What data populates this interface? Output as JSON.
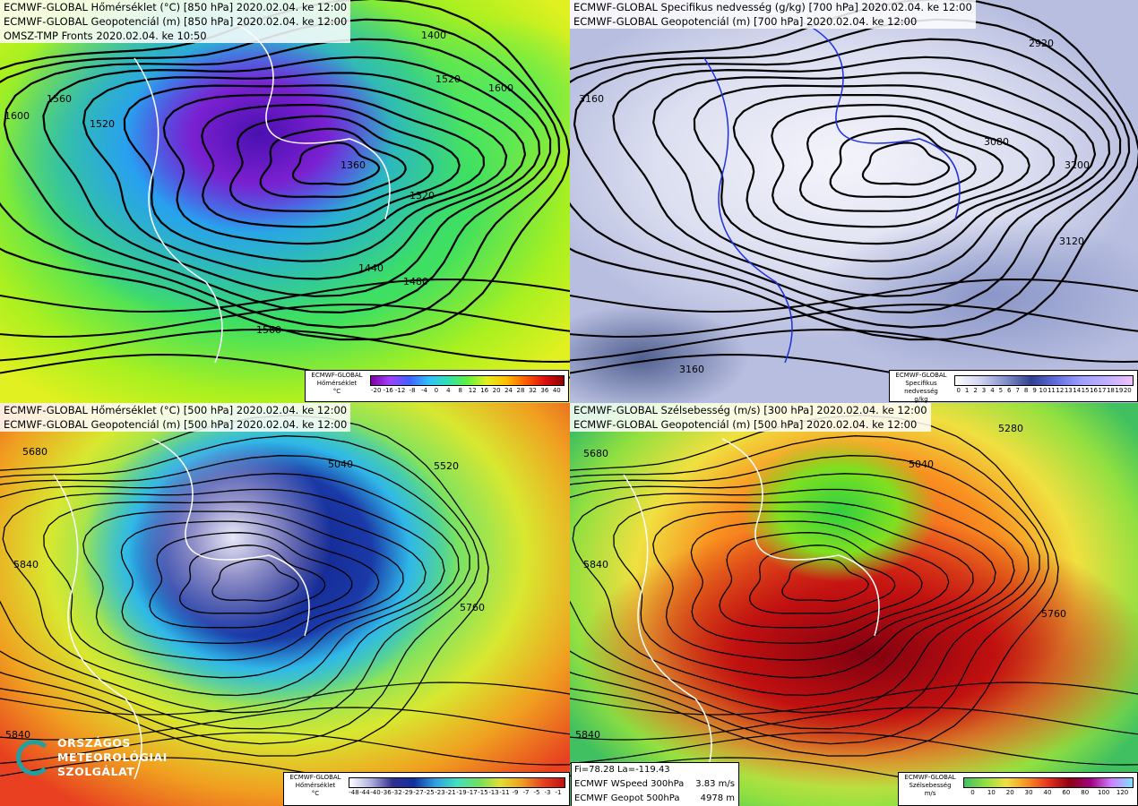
{
  "panels": [
    {
      "header": [
        "ECMWF-GLOBAL Hőmérséklet (°C) [850 hPa] 2020.02.04. ke 12:00",
        "ECMWF-GLOBAL Geopotenciál (m) [850 hPa] 2020.02.04. ke 12:00",
        "OMSZ-TMP Fronts 2020.02.04. ke 10:50"
      ],
      "legend": {
        "source": "ECMWF-GLOBAL",
        "name": "Hőmérséklet",
        "unit": "°C",
        "ticks": [
          "-20",
          "-16",
          "-12",
          "-8",
          "-4",
          "0",
          "4",
          "8",
          "12",
          "16",
          "20",
          "24",
          "28",
          "32",
          "36",
          "40"
        ]
      },
      "contour_labels": [
        "1600",
        "1560",
        "1520",
        "1480",
        "1440",
        "1400",
        "1520",
        "1600",
        "1360",
        "1320",
        "1560"
      ]
    },
    {
      "header": [
        "ECMWF-GLOBAL Specifikus nedvesség (g/kg) [700 hPa] 2020.02.04. ke 12:00",
        "ECMWF-GLOBAL Geopotenciál (m) [700 hPa] 2020.02.04. ke 12:00"
      ],
      "legend": {
        "source": "ECMWF-GLOBAL",
        "name": "Specifikus nedvesség",
        "unit": "g/kg",
        "ticks": [
          "0",
          "1",
          "2",
          "3",
          "4",
          "5",
          "6",
          "7",
          "8",
          "9",
          "10",
          "11",
          "12",
          "13",
          "14",
          "15",
          "16",
          "17",
          "18",
          "19",
          "20"
        ]
      },
      "contour_labels": [
        "3160",
        "3200",
        "3120",
        "3080",
        "2920",
        "3160"
      ]
    },
    {
      "header": [
        "ECMWF-GLOBAL Hőmérséklet (°C) [500 hPa] 2020.02.04. ke 12:00",
        "ECMWF-GLOBAL Geopotenciál (m) [500 hPa] 2020.02.04. ke 12:00"
      ],
      "legend": {
        "source": "ECMWF-GLOBAL",
        "name": "Hőmérséklet",
        "unit": "°C",
        "ticks": [
          "-48",
          "-44",
          "-40",
          "-36",
          "-32",
          "-29",
          "-27",
          "-25",
          "-23",
          "-21",
          "-19",
          "-17",
          "-15",
          "-13",
          "-11",
          "-9",
          "-7",
          "-5",
          "-3",
          "-1"
        ]
      },
      "contour_labels": [
        "5680",
        "5840",
        "5760",
        "5520",
        "5040",
        "5840"
      ]
    },
    {
      "header": [
        "ECMWF-GLOBAL Szélsebesség (m/s) [300 hPa] 2020.02.04. ke 12:00",
        "ECMWF-GLOBAL Geopotenciál (m) [500 hPa] 2020.02.04. ke 12:00"
      ],
      "legend": {
        "source": "ECMWF-GLOBAL",
        "name": "Szélsebesség",
        "unit": "m/s",
        "ticks": [
          "0",
          "10",
          "20",
          "30",
          "40",
          "60",
          "80",
          "100",
          "120"
        ]
      },
      "contour_labels": [
        "5680",
        "5840",
        "5760",
        "5040",
        "5280",
        "5840"
      ]
    }
  ],
  "logo": {
    "lines": [
      "ORSZÁGOS",
      "METEOROLÓGIAI",
      "SZOLGÁLAT"
    ]
  },
  "info_box": {
    "coords": "Fi=78.28 La=-119.43",
    "rows": [
      [
        "ECMWF WSpeed 300hPa",
        "3.83 m/s"
      ],
      [
        "ECMWF Geopot 500hPa",
        "4978 m"
      ]
    ]
  }
}
